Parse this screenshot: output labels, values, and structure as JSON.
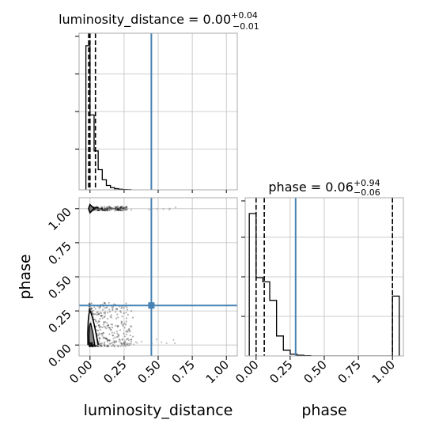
{
  "chart_data": {
    "type": "corner",
    "parameters": [
      "luminosity_distance",
      "phase"
    ],
    "truths": {
      "luminosity_distance": 0.45,
      "phase": 0.29
    },
    "diag_titles": {
      "luminosity_distance": {
        "prefix": "luminosity_distance = 0.00",
        "plus": "+0.04",
        "minus": "−0.01"
      },
      "phase": {
        "prefix": "phase = 0.06",
        "plus": "+0.94",
        "minus": "−0.06"
      }
    },
    "xlabels": [
      "luminosity_distance",
      "phase"
    ],
    "ylabel": "phase",
    "xlim": [
      -0.08,
      1.08
    ],
    "ylim_phase": [
      -0.08,
      1.08
    ],
    "ticks": [
      "0.00",
      "0.25",
      "0.50",
      "0.75",
      "1.00"
    ],
    "tick_values": [
      0,
      0.25,
      0.5,
      0.75,
      1.0
    ],
    "grid": true,
    "colors": {
      "truth": "#4682b4",
      "hist": "#000000",
      "grid": "#bfbfbf",
      "spine": "#aaaaaa"
    },
    "hist_luminosity_distance": {
      "bin_edges": [
        -0.03,
        0.0,
        0.03,
        0.06,
        0.09,
        0.12,
        0.15,
        0.18,
        0.21,
        0.24,
        0.27,
        0.3
      ],
      "values": [
        1.0,
        0.52,
        0.27,
        0.14,
        0.07,
        0.03,
        0.015,
        0.008,
        0.004,
        0.002,
        0.001
      ],
      "quantiles": [
        -0.01,
        0.0,
        0.04
      ]
    },
    "hist_phase": {
      "bin_edges": [
        -0.05,
        0.0,
        0.05,
        0.1,
        0.15,
        0.2,
        0.25,
        0.3,
        0.35,
        0.4,
        0.45,
        0.5,
        0.55,
        0.6,
        0.65,
        0.7,
        0.75,
        0.8,
        0.85,
        0.9,
        0.95,
        1.0,
        1.05
      ],
      "values": [
        1.0,
        0.55,
        0.52,
        0.39,
        0.14,
        0.04,
        0.012,
        0.005,
        0.002,
        0,
        0,
        0,
        0,
        0,
        0,
        0,
        0,
        0,
        0,
        0,
        0,
        0.42
      ],
      "quantiles": [
        0.0,
        0.06,
        1.0
      ]
    },
    "scatter_clusters": [
      {
        "x": [
          0.0,
          0.17
        ],
        "y": 1.0,
        "label": "phase near 1"
      },
      {
        "x": [
          0.0,
          0.22
        ],
        "y": 0.0,
        "label": "phase near 0"
      }
    ]
  }
}
